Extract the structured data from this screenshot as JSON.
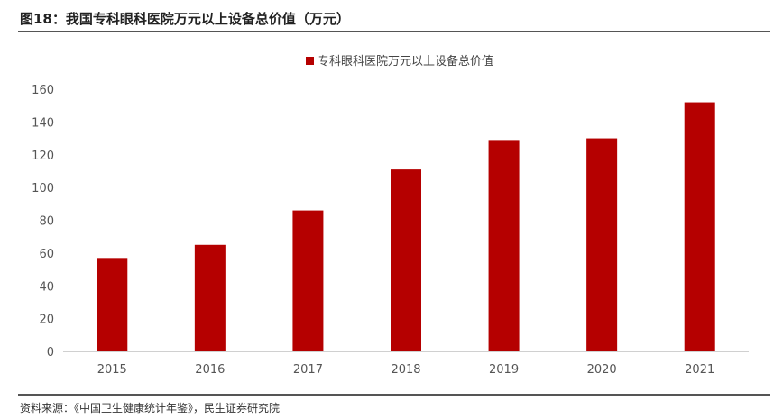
{
  "figure": {
    "title": "图18：我国专科眼科医院万元以上设备总价值（万元）",
    "source": "资料来源：《中国卫生健康统计年鉴》，民生证券研究院"
  },
  "chart_data": {
    "type": "bar",
    "categories": [
      "2015",
      "2016",
      "2017",
      "2018",
      "2019",
      "2020",
      "2021"
    ],
    "series": [
      {
        "name": "专科眼科医院万元以上设备总价值",
        "values": [
          57,
          65,
          86,
          111,
          129,
          130,
          152
        ],
        "color": "#B50000"
      }
    ],
    "ylim": [
      0,
      160
    ],
    "yticks": [
      0,
      20,
      40,
      60,
      80,
      100,
      120,
      140,
      160
    ],
    "grid": false,
    "legend": "top-center"
  }
}
